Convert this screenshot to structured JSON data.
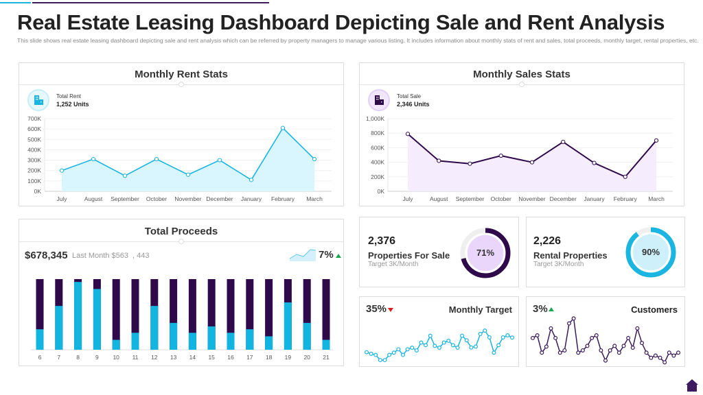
{
  "header": {
    "title": "Real Estate Leasing Dashboard Depicting Sale and Rent Analysis",
    "subtitle": "This slide shows real estate leasing dashboard depicting sale and rent analysis which can be referred by property managers to manage various listing. It includes information about monthly stats of rent and sales, total proceeds, monthly target, rental properties, etc."
  },
  "colors": {
    "cyan": "#1ab5e0",
    "purple": "#2e0a4a",
    "green": "#1aa64a",
    "red": "#e01b1b"
  },
  "rent": {
    "title": "Monthly Rent Stats",
    "icon": "building-icon",
    "stat_label": "Total Rent",
    "stat_value": "1,252 Units",
    "chart_data": {
      "type": "area",
      "categories": [
        "July",
        "August",
        "September",
        "October",
        "November",
        "December",
        "January",
        "February",
        "March"
      ],
      "values": [
        200,
        310,
        150,
        310,
        160,
        300,
        110,
        610,
        310
      ],
      "ylim": [
        0,
        700
      ],
      "yticks": [
        "0K",
        "100K",
        "200K",
        "300K",
        "400K",
        "500K",
        "600K",
        "700K"
      ],
      "grid": true
    }
  },
  "sales": {
    "title": "Monthly Sales Stats",
    "icon": "building-icon",
    "stat_label": "Total Sale",
    "stat_value": "2,346 Units",
    "chart_data": {
      "type": "area",
      "categories": [
        "July",
        "August",
        "September",
        "October",
        "November",
        "December",
        "January",
        "February",
        "March"
      ],
      "values": [
        790,
        420,
        380,
        490,
        400,
        680,
        390,
        200,
        700
      ],
      "ylim": [
        0,
        1000
      ],
      "yticks": [
        "0K",
        "200K",
        "400K",
        "600K",
        "800K",
        "1,000K"
      ],
      "grid": true
    }
  },
  "proceeds": {
    "title": "Total Proceeds",
    "amount": "$678,345",
    "last_month": "Last Month $563  , 443",
    "change": "7%",
    "trend": "up",
    "chart_data": {
      "type": "bar",
      "stacked": true,
      "categories": [
        "6",
        "7",
        "8",
        "9",
        "10",
        "11",
        "12",
        "13",
        "14",
        "15",
        "16",
        "17",
        "18",
        "19",
        "20",
        "21"
      ],
      "values": [
        0.29,
        0.62,
        0.96,
        0.86,
        0.14,
        0.24,
        0.62,
        0.38,
        0.24,
        0.33,
        0.24,
        0.29,
        0.19,
        0.67,
        0.38,
        0.14
      ]
    }
  },
  "for_sale": {
    "value": "2,376",
    "label": "Properties For Sale",
    "target": "Target  3K/Month",
    "percent_text": "71%",
    "percent": 71
  },
  "rental": {
    "value": "2,226",
    "label": "Rental Properties",
    "target": "Target  3K/Month",
    "percent_text": "90%",
    "percent": 90
  },
  "monthly_target": {
    "change": "35%",
    "trend": "down",
    "label": "Monthly Target",
    "chart_data": {
      "type": "line",
      "values": [
        47,
        40,
        35,
        12,
        12,
        35,
        45,
        60,
        35,
        60,
        67,
        55,
        90,
        78,
        120,
        75,
        67,
        90,
        98,
        78,
        67,
        120,
        100,
        68,
        72,
        128,
        143,
        113,
        45,
        78,
        113,
        122,
        112
      ]
    }
  },
  "customers": {
    "change": "3%",
    "trend": "up",
    "label": "Customers",
    "chart_data": {
      "type": "line",
      "values": [
        110,
        122,
        45,
        72,
        153,
        110,
        45,
        55,
        175,
        197,
        45,
        55,
        75,
        110,
        122,
        55,
        10,
        55,
        75,
        45,
        75,
        110,
        67,
        153,
        88,
        45,
        22,
        32,
        22,
        2,
        45,
        32,
        45
      ]
    }
  }
}
